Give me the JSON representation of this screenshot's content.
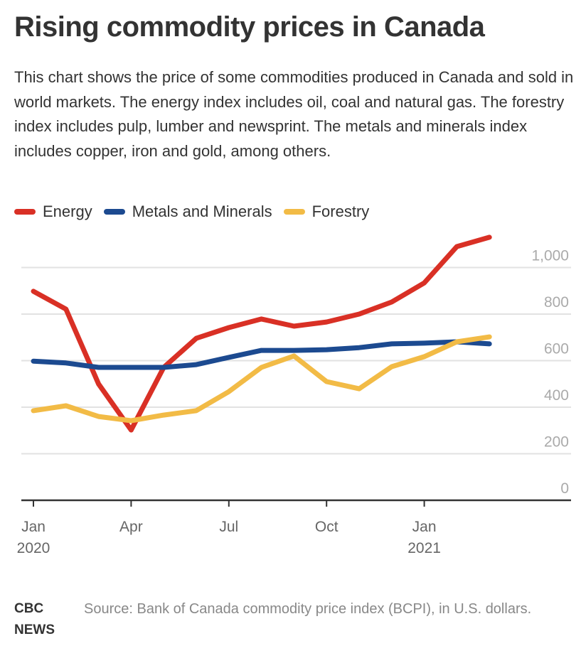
{
  "title": "Rising commodity prices in Canada",
  "subtitle": "This chart shows the price of some commodities produced in Canada and sold in world markets. The energy index includes oil, coal and natural gas. The forestry index includes pulp, lumber and newsprint. The metals and minerals index includes copper, iron and gold, among others.",
  "footer": {
    "logo_line1": "CBC",
    "logo_line2": "NEWS",
    "source": "Source: Bank of Canada commodity price index (BCPI), in U.S. dollars."
  },
  "chart_data": {
    "type": "line",
    "title": "Rising commodity prices in Canada",
    "xlabel": "",
    "ylabel": "",
    "ylim": [
      0,
      1000
    ],
    "yticks": [
      0,
      200,
      400,
      600,
      800,
      1000
    ],
    "ytick_labels": [
      "0",
      "200",
      "400",
      "600",
      "800",
      "1,000"
    ],
    "y_axis_position": "right",
    "grid": true,
    "legend_position": "top-left",
    "x": [
      "2020-01",
      "2020-02",
      "2020-03",
      "2020-04",
      "2020-05",
      "2020-06",
      "2020-07",
      "2020-08",
      "2020-09",
      "2020-10",
      "2020-11",
      "2020-12",
      "2021-01",
      "2021-02",
      "2021-03"
    ],
    "xticks": [
      {
        "index": 0,
        "line1": "Jan",
        "line2": "2020"
      },
      {
        "index": 3,
        "line1": "Apr",
        "line2": ""
      },
      {
        "index": 6,
        "line1": "Jul",
        "line2": ""
      },
      {
        "index": 9,
        "line1": "Oct",
        "line2": ""
      },
      {
        "index": 12,
        "line1": "Jan",
        "line2": "2021"
      }
    ],
    "series": [
      {
        "name": "Energy",
        "color": "#d93025",
        "values": [
          898,
          821,
          500,
          302,
          571,
          696,
          742,
          779,
          748,
          766,
          800,
          852,
          934,
          1090,
          1130
        ]
      },
      {
        "name": "Metals and Minerals",
        "color": "#1c4a90",
        "values": [
          598,
          590,
          571,
          571,
          571,
          583,
          614,
          644,
          644,
          647,
          656,
          672,
          675,
          681,
          672
        ]
      },
      {
        "name": "Forestry",
        "color": "#f2bb46",
        "values": [
          385,
          406,
          360,
          342,
          366,
          385,
          467,
          571,
          620,
          510,
          479,
          574,
          617,
          681,
          702
        ]
      }
    ]
  }
}
